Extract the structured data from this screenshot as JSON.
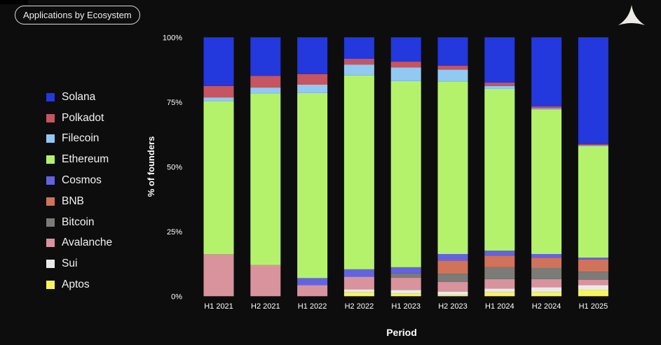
{
  "header": {
    "title": "Applications by Ecosystem"
  },
  "logo": {
    "icon": "triangle-logo-icon"
  },
  "chart_data": {
    "type": "bar",
    "stacked": true,
    "xlabel": "Period",
    "ylabel": "% of founders",
    "ylim": [
      0,
      100
    ],
    "yticks": [
      "0%",
      "25%",
      "50%",
      "75%",
      "100%"
    ],
    "grid": false,
    "legend_placement": "left",
    "categories": [
      "H1 2021",
      "H2 2021",
      "H1 2022",
      "H2 2022",
      "H1 2023",
      "H2 2023",
      "H1 2024",
      "H2 2024",
      "H1 2025"
    ],
    "series": [
      {
        "name": "Aptos",
        "color": "#f8f55a",
        "values": [
          0,
          0,
          0,
          1.5,
          1.1,
          0.6,
          1.5,
          1.5,
          2.4
        ]
      },
      {
        "name": "Sui",
        "color": "#eaeaea",
        "values": [
          0,
          0,
          0,
          1.2,
          1.3,
          1.2,
          1.5,
          2.0,
          1.9
        ]
      },
      {
        "name": "Avalanche",
        "color": "#d8939d",
        "values": [
          16.2,
          12.1,
          4.3,
          4.8,
          4.7,
          3.7,
          3.6,
          3.1,
          2.0
        ]
      },
      {
        "name": "Bitcoin",
        "color": "#7b7b78",
        "values": [
          0,
          0,
          0,
          0,
          1.7,
          3.2,
          4.6,
          4.3,
          3.2
        ]
      },
      {
        "name": "BNB",
        "color": "#d0735a",
        "values": [
          0,
          0,
          0,
          0,
          0,
          5.1,
          4.5,
          4.0,
          4.7
        ]
      },
      {
        "name": "Cosmos",
        "color": "#6363e0",
        "values": [
          0,
          0,
          2.7,
          2.9,
          2.4,
          2.5,
          1.9,
          1.4,
          0.7
        ]
      },
      {
        "name": "Ethereum",
        "color": "#b5f26c",
        "values": [
          59.2,
          66.1,
          71.5,
          74.9,
          71.9,
          66.5,
          62.5,
          55.7,
          43.0
        ]
      },
      {
        "name": "Filecoin",
        "color": "#91c9f2",
        "values": [
          1.4,
          2.4,
          3.2,
          4.2,
          5.3,
          4.7,
          1.1,
          0.5,
          0.3
        ]
      },
      {
        "name": "Polkadot",
        "color": "#c45561",
        "values": [
          4.4,
          4.5,
          4.1,
          2.2,
          2.2,
          1.5,
          1.3,
          0.8,
          0.5
        ]
      },
      {
        "name": "Solana",
        "color": "#2338dd",
        "values": [
          18.8,
          14.9,
          14.2,
          8.3,
          9.4,
          11.0,
          17.5,
          26.7,
          41.3
        ]
      }
    ],
    "legend_order": [
      "Solana",
      "Polkadot",
      "Filecoin",
      "Ethereum",
      "Cosmos",
      "BNB",
      "Bitcoin",
      "Avalanche",
      "Sui",
      "Aptos"
    ]
  }
}
